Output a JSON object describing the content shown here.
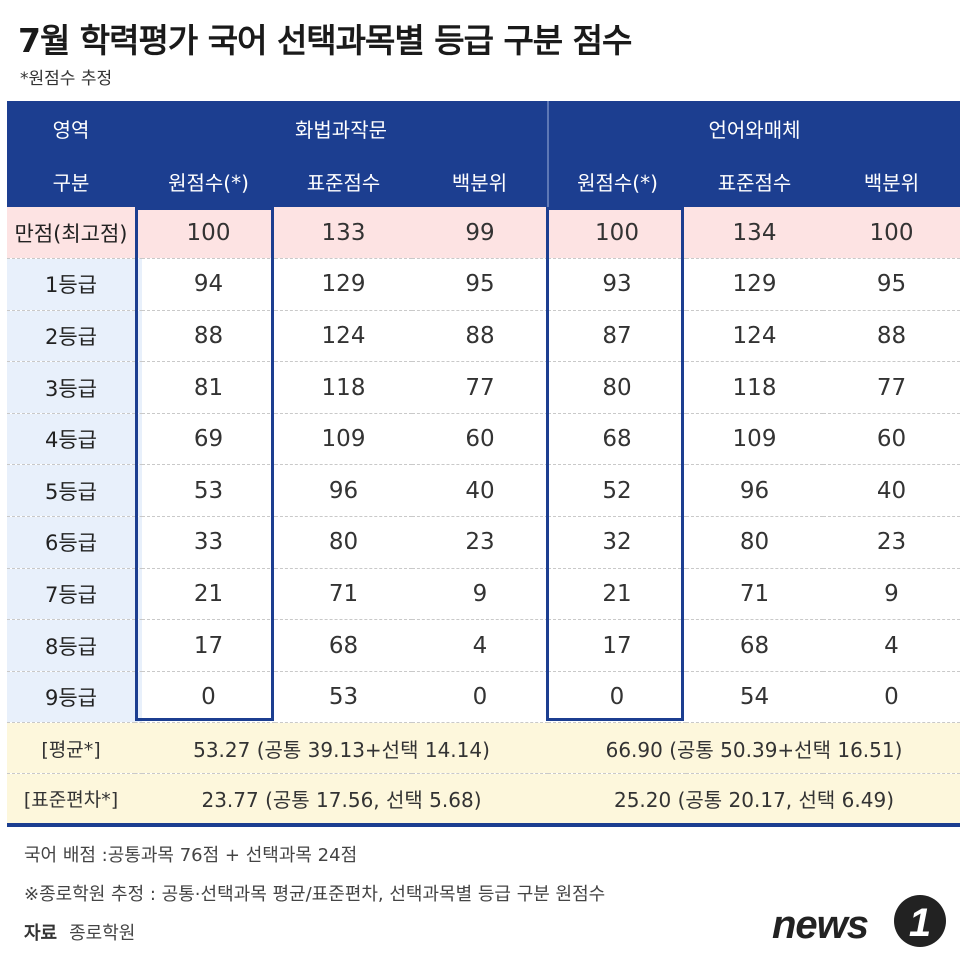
{
  "title": "7월 학력평가 국어 선택과목별 등급 구분 점수",
  "subtitle": "*원점수 추정",
  "table": {
    "area_label": "영역",
    "sub_label": "구분",
    "groups": [
      "화법과작문",
      "언어와매체"
    ],
    "columns": [
      "원점수(*)",
      "표준점수",
      "백분위",
      "원점수(*)",
      "표준점수",
      "백분위"
    ],
    "rows": [
      {
        "label": "만점(최고점)",
        "values": [
          "100",
          "133",
          "99",
          "100",
          "134",
          "100"
        ]
      },
      {
        "label": "1등급",
        "values": [
          "94",
          "129",
          "95",
          "93",
          "129",
          "95"
        ]
      },
      {
        "label": "2등급",
        "values": [
          "88",
          "124",
          "88",
          "87",
          "124",
          "88"
        ]
      },
      {
        "label": "3등급",
        "values": [
          "81",
          "118",
          "77",
          "80",
          "118",
          "77"
        ]
      },
      {
        "label": "4등급",
        "values": [
          "69",
          "109",
          "60",
          "68",
          "109",
          "60"
        ]
      },
      {
        "label": "5등급",
        "values": [
          "53",
          "96",
          "40",
          "52",
          "96",
          "40"
        ]
      },
      {
        "label": "6등급",
        "values": [
          "33",
          "80",
          "23",
          "32",
          "80",
          "23"
        ]
      },
      {
        "label": "7등급",
        "values": [
          "21",
          "71",
          "9",
          "21",
          "71",
          "9"
        ]
      },
      {
        "label": "8등급",
        "values": [
          "17",
          "68",
          "4",
          "17",
          "68",
          "4"
        ]
      },
      {
        "label": "9등급",
        "values": [
          "0",
          "53",
          "0",
          "0",
          "54",
          "0"
        ]
      }
    ],
    "summary": [
      {
        "label": "[평균*]",
        "values": [
          "53.27 (공통 39.13+선택 14.14)",
          "66.90 (공통 50.39+선택 16.51)"
        ]
      },
      {
        "label": "[표준편차*]",
        "values": [
          "23.77 (공통 17.56, 선택 5.68)",
          "25.20 (공통 20.17, 선택 6.49)"
        ]
      }
    ]
  },
  "notes": [
    "국어 배점 :공통과목 76점 + 선택과목 24점",
    "※종로학원 추정 : 공통·선택과목 평균/표준편차, 선택과목별 등급 구분 원점수"
  ],
  "source": {
    "label": "자료",
    "value": "종로학원"
  },
  "logo": {
    "text": "news",
    "digit": "1"
  },
  "colors": {
    "header": "#1c3e90",
    "top_row": "#fde3e3",
    "label_col": "#e8f0fb",
    "summary": "#fdf7dc"
  }
}
